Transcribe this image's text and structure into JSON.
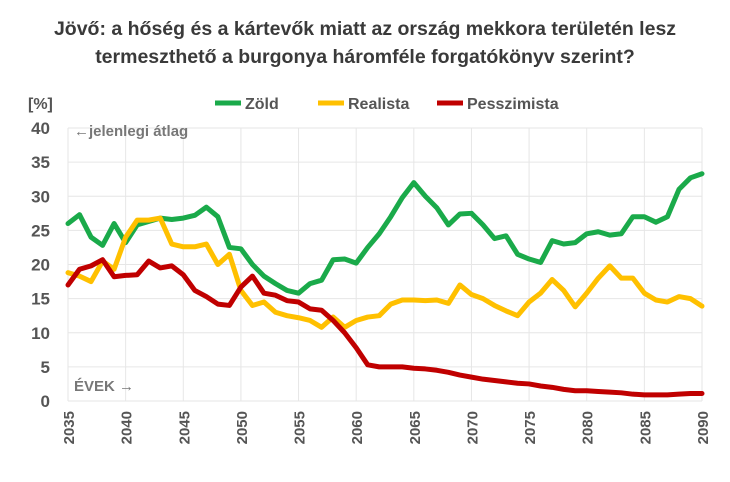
{
  "chart_data": {
    "type": "line",
    "title": [
      "Jövő: a hőség és a kártevők miatt az ország mekkora területén lesz",
      "termeszthető a burgonya háromféle forgatókönyv szerint?"
    ],
    "ylabel": "[%]",
    "xlabel": "ÉVEK →",
    "annotation": "←jelenlegi átlag",
    "ylim": [
      0,
      40
    ],
    "xlim": [
      2035,
      2090
    ],
    "yticks": [
      0,
      5,
      10,
      15,
      20,
      25,
      30,
      35,
      40
    ],
    "xticks": [
      2035,
      2040,
      2045,
      2050,
      2055,
      2060,
      2065,
      2070,
      2075,
      2080,
      2085,
      2090
    ],
    "grid": true,
    "legend_position": "top",
    "x_start": 2035,
    "series": [
      {
        "name": "Zöld",
        "color": "#1aaa4a",
        "values": [
          26,
          27.3,
          24,
          22.8,
          26,
          23.2,
          25.8,
          26.3,
          26.8,
          26.6,
          26.8,
          27.2,
          28.4,
          27,
          22.5,
          22.3,
          20,
          18.3,
          17.2,
          16.2,
          15.8,
          17.2,
          17.7,
          20.7,
          20.8,
          20.2,
          22.5,
          24.5,
          27,
          29.8,
          32,
          30,
          28.3,
          25.8,
          27.4,
          27.5,
          25.8,
          23.8,
          24.2,
          21.5,
          20.8,
          20.3,
          23.5,
          23,
          23.2,
          24.5,
          24.8,
          24.3,
          24.5,
          27,
          27,
          26.2,
          27,
          31,
          32.7,
          33.3
        ]
      },
      {
        "name": "Realista",
        "color": "#ffc000",
        "values": [
          18.8,
          18.3,
          17.5,
          20.5,
          19.3,
          24,
          26.5,
          26.5,
          26.8,
          23,
          22.6,
          22.6,
          23,
          20,
          21.5,
          16.2,
          14,
          14.5,
          13,
          12.5,
          12.2,
          11.8,
          10.8,
          12.3,
          10.8,
          11.8,
          12.3,
          12.5,
          14.2,
          14.8,
          14.8,
          14.7,
          14.8,
          14.3,
          17,
          15.6,
          15,
          14,
          13.2,
          12.5,
          14.5,
          15.8,
          17.8,
          16.2,
          13.8,
          15.8,
          18,
          19.8,
          18,
          18,
          15.8,
          14.8,
          14.5,
          15.3,
          15,
          13.9
        ]
      },
      {
        "name": "Pesszimista",
        "color": "#c00000",
        "values": [
          17,
          19.3,
          19.8,
          20.7,
          18.2,
          18.4,
          18.5,
          20.5,
          19.5,
          19.8,
          18.5,
          16.2,
          15.3,
          14.2,
          14,
          16.7,
          18.3,
          15.8,
          15.5,
          14.7,
          14.5,
          13.5,
          13.3,
          11.8,
          10,
          7.8,
          5.3,
          5,
          5,
          5,
          4.8,
          4.7,
          4.5,
          4.2,
          3.8,
          3.5,
          3.2,
          3,
          2.8,
          2.6,
          2.5,
          2.2,
          2,
          1.7,
          1.5,
          1.5,
          1.4,
          1.3,
          1.2,
          1,
          0.9,
          0.9,
          0.9,
          1,
          1.1,
          1.1
        ]
      }
    ]
  }
}
